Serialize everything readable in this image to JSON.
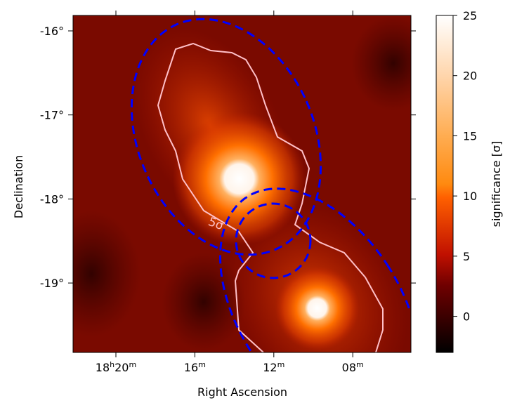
{
  "chart_data": {
    "type": "heatmap",
    "xlabel": "Right Ascension",
    "ylabel": "Declination",
    "x_ticks": [
      {
        "value_min": 20,
        "label_main": "18",
        "sup1": "h",
        "label2": "20",
        "sup2": "m"
      },
      {
        "value_min": 16,
        "label_main": "16",
        "sup1": "m"
      },
      {
        "value_min": 12,
        "label_main": "12",
        "sup1": "m"
      },
      {
        "value_min": 8,
        "label_main": "08",
        "sup1": "m"
      }
    ],
    "y_ticks": [
      {
        "value": -16,
        "label": "-16°"
      },
      {
        "value": -17,
        "label": "-17°"
      },
      {
        "value": -18,
        "label": "-18°"
      },
      {
        "value": -19,
        "label": "-19°"
      }
    ],
    "xlim_ra_minutes_after_18h": [
      22.2,
      5.0
    ],
    "ylim_deg": [
      -19.83,
      -15.82
    ],
    "colorbar": {
      "label": "significance [σ]",
      "range": [
        -3,
        25
      ],
      "ticks": [
        "25",
        "20",
        "15",
        "10",
        "5",
        "0"
      ],
      "tick_values": [
        25,
        20,
        15,
        10,
        5,
        0
      ]
    },
    "sources": [
      {
        "ra_min": 13.75,
        "dec": -17.76,
        "peak_sigma": 25
      },
      {
        "ra_min": 9.8,
        "dec": -19.3,
        "peak_sigma": 25
      }
    ],
    "contour_label": "5σ",
    "colors": {
      "background": "#7a0a00",
      "contour": "#ffc0c8",
      "ellipse": "#0000ff"
    }
  }
}
